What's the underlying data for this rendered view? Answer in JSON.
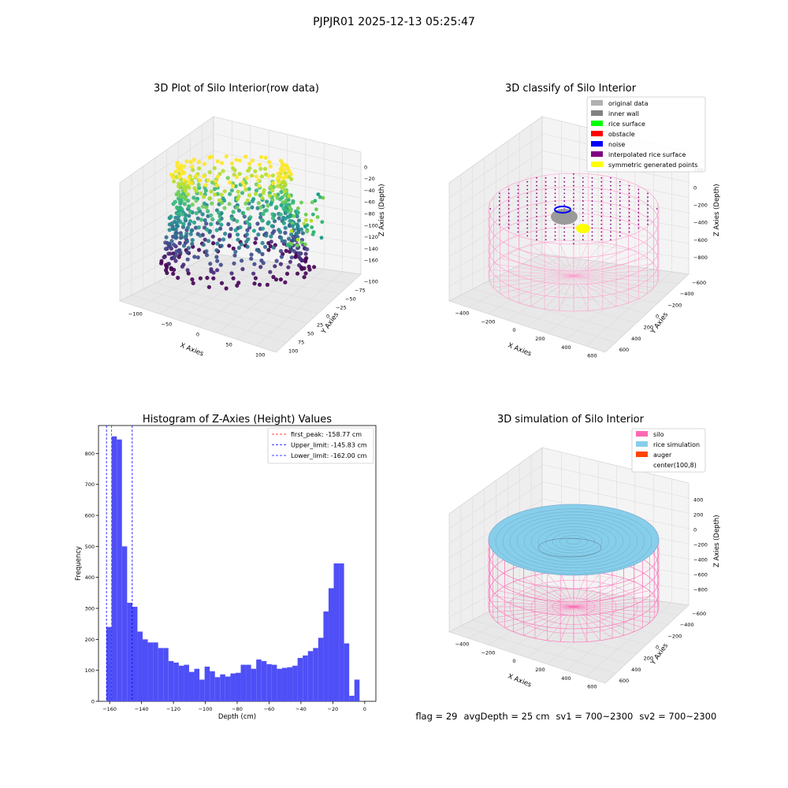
{
  "figure_title": "PJPJR01 2025-12-13 05:25:47",
  "footer": {
    "flag": "flag = 29",
    "avg_depth": "avgDepth = 25 cm",
    "sv1": "sv1 = 700~2300",
    "sv2": "sv2 = 700~2300"
  },
  "colors": {
    "pane": "#f2f2f2",
    "grid": "#d9d9d9",
    "hist_bar": "#4f4ff7",
    "silo": "#ff69b4",
    "rice_sim": "#87ceeb",
    "auger": "#ff4500"
  },
  "chart_data": [
    {
      "type": "scatter",
      "projection": "3d",
      "title": "3D Plot of Silo Interior(row data)",
      "xlabel": "X Axies",
      "ylabel": "Y Axies",
      "zlabel": "Z Axies (Depth)",
      "x_ticks": [
        "−100",
        "−50",
        "0",
        "50",
        "100"
      ],
      "y_ticks": [
        "−100",
        "−75",
        "−50",
        "−25",
        "0",
        "25",
        "50",
        "75",
        "100"
      ],
      "z_ticks": [
        "0",
        "−20",
        "−40",
        "−60",
        "−80",
        "−100",
        "−120",
        "−140",
        "−160"
      ],
      "xlim": [
        -100,
        100
      ],
      "ylim": [
        -100,
        100
      ],
      "zlim": [
        -165,
        5
      ],
      "colormap": "viridis"
    },
    {
      "type": "scatter",
      "projection": "3d",
      "title": "3D classify of Silo Interior",
      "xlabel": "X Axies",
      "ylabel": "Y Axies",
      "zlabel": "Z Axies (Depth)",
      "x_ticks": [
        "−400",
        "−200",
        "0",
        "200",
        "400",
        "600"
      ],
      "y_ticks": [
        "−600",
        "−400",
        "−200",
        "0",
        "200",
        "400",
        "600"
      ],
      "z_ticks": [
        "200",
        "0",
        "−200",
        "−400",
        "−600",
        "−800"
      ],
      "legend": [
        {
          "label": "original data",
          "color": "#b0b0b0"
        },
        {
          "label": "inner wall",
          "color": "#808080"
        },
        {
          "label": "rice surface",
          "color": "#00ff00"
        },
        {
          "label": "obstacle",
          "color": "#ff0000"
        },
        {
          "label": "noise",
          "color": "#0000ff"
        },
        {
          "label": "interpolated rice surface",
          "color": "#800080"
        },
        {
          "label": "symmetric generated points",
          "color": "#ffff00"
        }
      ],
      "legend_position": "upper right"
    },
    {
      "type": "bar",
      "title": "Histogram of Z-Axies (Height) Values",
      "xlabel": "Depth (cm)",
      "ylabel": "Frequency",
      "xlim": [
        -167,
        7
      ],
      "ylim": [
        0,
        890
      ],
      "x_ticks": [
        -160,
        -140,
        -120,
        -100,
        -80,
        -60,
        -40,
        -20,
        0
      ],
      "y_ticks": [
        0,
        100,
        200,
        300,
        400,
        500,
        600,
        700,
        800
      ],
      "bin_start": -162,
      "bin_width": 3.24,
      "values": [
        240,
        855,
        845,
        500,
        318,
        305,
        225,
        200,
        190,
        190,
        172,
        172,
        130,
        125,
        115,
        118,
        95,
        105,
        70,
        112,
        97,
        78,
        87,
        80,
        90,
        92,
        118,
        118,
        105,
        135,
        130,
        120,
        118,
        105,
        108,
        110,
        115,
        140,
        148,
        162,
        172,
        205,
        290,
        365,
        445,
        445,
        187,
        18,
        70
      ],
      "lines": [
        {
          "label": "first_peak: -158.77 cm",
          "x": -158.77,
          "color": "#ff0000"
        },
        {
          "label": "Upper_limit: -145.83 cm",
          "x": -145.83,
          "color": "#0000ff"
        },
        {
          "label": "Lower_limit: -162.00 cm",
          "x": -162.0,
          "color": "#0000ff"
        }
      ],
      "legend_position": "upper right"
    },
    {
      "type": "surface",
      "projection": "3d",
      "title": "3D simulation of Silo Interior",
      "xlabel": "X Axies",
      "ylabel": "Y Axies",
      "zlabel": "Z Axies (Depth)",
      "x_ticks": [
        "−400",
        "−200",
        "0",
        "200",
        "400",
        "600"
      ],
      "y_ticks": [
        "−600",
        "−400",
        "−200",
        "0",
        "200",
        "400",
        "600"
      ],
      "z_ticks": [
        "400",
        "200",
        "0",
        "−200",
        "−400",
        "−600",
        "−800"
      ],
      "legend": [
        {
          "label": "silo",
          "color": "#ff69b4"
        },
        {
          "label": "rice simulation",
          "color": "#87ceeb"
        },
        {
          "label": "auger",
          "color": "#ff4500"
        },
        {
          "label": "center(100,8)",
          "color": "#ffffff"
        }
      ],
      "legend_position": "upper right"
    }
  ]
}
